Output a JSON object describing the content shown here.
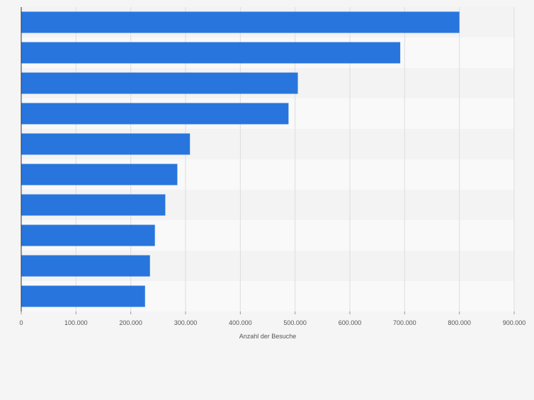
{
  "chart_data": {
    "type": "bar",
    "orientation": "horizontal",
    "title": "",
    "xlabel": "Anzahl der Besuche",
    "ylabel": "",
    "categories": [
      "",
      "",
      "",
      "",
      "",
      "",
      "",
      "",
      "",
      ""
    ],
    "values": [
      800000,
      692000,
      505000,
      488000,
      308000,
      285000,
      263000,
      244000,
      235000,
      226000
    ],
    "xlim": [
      0,
      900000
    ],
    "ticks": [
      0,
      100000,
      200000,
      300000,
      400000,
      500000,
      600000,
      700000,
      800000,
      900000
    ],
    "tick_labels": [
      "0",
      "100.000",
      "200.000",
      "300.000",
      "400.000",
      "500.000",
      "600.000",
      "700.000",
      "800.000",
      "900.000"
    ],
    "grid": true,
    "bar_color": "#2876dd",
    "band_colors": [
      "#f3f3f3",
      "#f9f9f9"
    ]
  }
}
